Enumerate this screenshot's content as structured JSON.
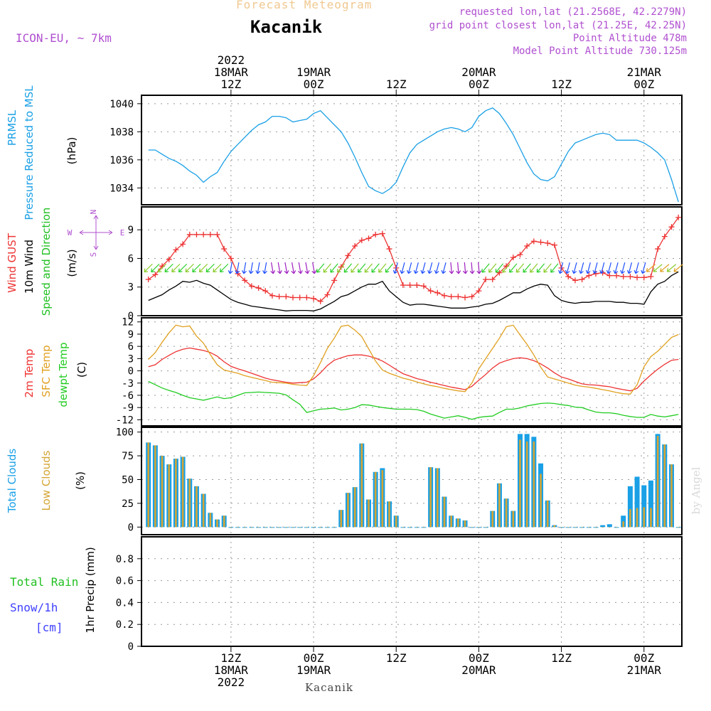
{
  "header": {
    "product": "Forecast Meteogram",
    "location": "Kacanik",
    "model": "ICON-EU, ~ 7km",
    "requested": "requested lon,lat (21.2568E, 42.2279N)",
    "grid_point": "grid point closest lon,lat (21.25E, 42.25N)",
    "point_altitude": "Point Altitude 478m",
    "model_altitude": "Model Point Altitude 730.125m",
    "watermark": "by Angel",
    "footer_location": "Kacanik"
  },
  "colors": {
    "pressure": "#1aa0e6",
    "gust": "#ee3333",
    "wind10m": "#000000",
    "dir_label": "#20c020",
    "t2m": "#ee3333",
    "tsfc": "#e0a020",
    "dewpt": "#22cc22",
    "total_clouds": "#1aa0e6",
    "low_clouds": "#d4a534",
    "rain": "#20c020",
    "snow": "#4040ff",
    "meta": "#b050d0",
    "product": "#f0c890"
  },
  "time_axis": {
    "top_labels": [
      {
        "t": 12,
        "lines": [
          "2022",
          "18MAR",
          "12Z"
        ]
      },
      {
        "t": 24,
        "lines": [
          "19MAR",
          "00Z"
        ]
      },
      {
        "t": 36,
        "lines": [
          "12Z"
        ]
      },
      {
        "t": 48,
        "lines": [
          "20MAR",
          "00Z"
        ]
      },
      {
        "t": 60,
        "lines": [
          "12Z"
        ]
      },
      {
        "t": 72,
        "lines": [
          "21MAR",
          "00Z"
        ]
      }
    ],
    "bottom_labels": [
      {
        "t": 12,
        "lines": [
          "12Z",
          "18MAR",
          "2022"
        ]
      },
      {
        "t": 24,
        "lines": [
          "00Z",
          "19MAR"
        ]
      },
      {
        "t": 36,
        "lines": [
          "12Z"
        ]
      },
      {
        "t": 48,
        "lines": [
          "00Z",
          "20MAR"
        ]
      },
      {
        "t": 60,
        "lines": [
          "12Z"
        ]
      },
      {
        "t": 72,
        "lines": [
          "00Z",
          "21MAR"
        ]
      }
    ]
  },
  "chart_data": [
    {
      "type": "line",
      "panel": "pressure",
      "ylabel_lines": [
        "PRMSL",
        "Pressure Reduced to MSL"
      ],
      "unit": "(hPa)",
      "x_hours": [
        0,
        1,
        2,
        3,
        4,
        5,
        6,
        7,
        8,
        9,
        10,
        11,
        12,
        13,
        14,
        15,
        16,
        17,
        18,
        19,
        20,
        21,
        22,
        23,
        24,
        25,
        26,
        27,
        28,
        29,
        30,
        31,
        32,
        33,
        34,
        35,
        36,
        37,
        38,
        39,
        40,
        41,
        42,
        43,
        44,
        45,
        46,
        47,
        48,
        49,
        50,
        51,
        52,
        53,
        54,
        55,
        56,
        57,
        58,
        59,
        60,
        61,
        62,
        63,
        64,
        65,
        66,
        67,
        68,
        69,
        70,
        71,
        72,
        73,
        74,
        75,
        76,
        77
      ],
      "ylim": [
        1032.8,
        1040.6
      ],
      "yticks": [
        1034,
        1036,
        1038,
        1040
      ],
      "series": [
        {
          "values": [
            1036.7,
            1036.7,
            1036.4,
            1036.1,
            1035.9,
            1035.6,
            1035.2,
            1034.9,
            1034.4,
            1034.8,
            1035.1,
            1035.9,
            1036.6,
            1037.1,
            1037.6,
            1038.1,
            1038.5,
            1038.7,
            1039.1,
            1039.1,
            1039.0,
            1038.7,
            1038.8,
            1038.9,
            1039.3,
            1039.5,
            1039.0,
            1038.5,
            1038.0,
            1037.2,
            1036.2,
            1035.1,
            1034.1,
            1033.8,
            1033.6,
            1033.9,
            1034.4,
            1035.5,
            1036.5,
            1037.1,
            1037.4,
            1037.7,
            1038.0,
            1038.2,
            1038.3,
            1038.2,
            1038.0,
            1038.3,
            1039.1,
            1039.5,
            1039.7,
            1039.3,
            1038.6,
            1037.8,
            1036.8,
            1035.8,
            1035.0,
            1034.6,
            1034.5,
            1034.8,
            1035.7,
            1036.6,
            1037.2,
            1037.4,
            1037.6,
            1037.8,
            1037.9,
            1037.8,
            1037.4,
            1037.4,
            1037.4,
            1037.4,
            1037.2,
            1036.9,
            1036.5,
            1036.0,
            1034.6,
            1033.0
          ]
        }
      ]
    },
    {
      "type": "line",
      "panel": "wind",
      "ylabel_lines": [
        "Wind GUST",
        "10m Wind",
        "Speed and Direction"
      ],
      "unit": "(m/s)",
      "compass": [
        "N",
        "S",
        "W",
        "E"
      ],
      "x_hours": [
        0,
        1,
        2,
        3,
        4,
        5,
        6,
        7,
        8,
        9,
        10,
        11,
        12,
        13,
        14,
        15,
        16,
        17,
        18,
        19,
        20,
        21,
        22,
        23,
        24,
        25,
        26,
        27,
        28,
        29,
        30,
        31,
        32,
        33,
        34,
        35,
        36,
        37,
        38,
        39,
        40,
        41,
        42,
        43,
        44,
        45,
        46,
        47,
        48,
        49,
        50,
        51,
        52,
        53,
        54,
        55,
        56,
        57,
        58,
        59,
        60,
        61,
        62,
        63,
        64,
        65,
        66,
        67,
        68,
        69,
        70,
        71,
        72,
        73,
        74,
        75,
        76,
        77
      ],
      "ylim": [
        0,
        11.4
      ],
      "yticks": [
        0,
        3,
        6,
        9
      ],
      "series": [
        {
          "key": "gust",
          "values": [
            3.8,
            4.3,
            5.2,
            5.9,
            6.9,
            7.5,
            8.5,
            8.5,
            8.5,
            8.5,
            8.5,
            7.0,
            6.0,
            4.4,
            3.7,
            3.1,
            2.9,
            2.6,
            2.1,
            2.0,
            2.0,
            1.9,
            1.9,
            1.9,
            1.8,
            1.5,
            2.2,
            3.7,
            5.1,
            6.3,
            7.3,
            7.9,
            8.1,
            8.5,
            8.6,
            7.0,
            5.0,
            3.2,
            3.2,
            3.2,
            3.1,
            2.6,
            2.4,
            2.1,
            2.0,
            2.0,
            1.9,
            2.0,
            2.6,
            3.8,
            3.8,
            4.5,
            5.2,
            6.1,
            6.4,
            7.3,
            7.8,
            7.7,
            7.6,
            7.4,
            5.0,
            4.1,
            3.7,
            3.8,
            4.2,
            4.4,
            4.5,
            4.2,
            4.2,
            4.1,
            4.1,
            4.0,
            4.0,
            4.1,
            7.0,
            8.3,
            9.3,
            10.3
          ]
        },
        {
          "key": "wind10m",
          "values": [
            1.6,
            1.9,
            2.2,
            2.7,
            3.1,
            3.6,
            3.5,
            3.7,
            3.4,
            3.2,
            2.7,
            2.2,
            1.7,
            1.4,
            1.2,
            1.0,
            0.9,
            0.8,
            0.7,
            0.6,
            0.5,
            0.55,
            0.55,
            0.55,
            0.5,
            0.7,
            1.1,
            1.5,
            2.0,
            2.2,
            2.6,
            3.0,
            3.3,
            3.3,
            3.6,
            2.6,
            2.0,
            1.4,
            1.1,
            1.2,
            1.2,
            1.1,
            1.0,
            0.9,
            0.8,
            0.8,
            0.8,
            0.9,
            1.0,
            1.2,
            1.3,
            1.6,
            2.0,
            2.4,
            2.4,
            2.8,
            3.1,
            3.3,
            3.2,
            2.1,
            1.6,
            1.4,
            1.3,
            1.4,
            1.4,
            1.5,
            1.5,
            1.5,
            1.4,
            1.4,
            1.3,
            1.3,
            1.2,
            2.5,
            3.3,
            3.6,
            4.2,
            4.6
          ]
        }
      ]
    },
    {
      "type": "line",
      "panel": "temperature",
      "ylabel_lines": [
        "2m Temp",
        "SFC Temp",
        "dewpt Temp"
      ],
      "unit": "(C)",
      "x_hours": [
        0,
        1,
        2,
        3,
        4,
        5,
        6,
        7,
        8,
        9,
        10,
        11,
        12,
        13,
        14,
        15,
        16,
        17,
        18,
        19,
        20,
        21,
        22,
        23,
        24,
        25,
        26,
        27,
        28,
        29,
        30,
        31,
        32,
        33,
        34,
        35,
        36,
        37,
        38,
        39,
        40,
        41,
        42,
        43,
        44,
        45,
        46,
        47,
        48,
        49,
        50,
        51,
        52,
        53,
        54,
        55,
        56,
        57,
        58,
        59,
        60,
        61,
        62,
        63,
        64,
        65,
        66,
        67,
        68,
        69,
        70,
        71,
        72,
        73,
        74,
        75,
        76,
        77
      ],
      "ylim": [
        -13.5,
        13
      ],
      "yticks": [
        -12,
        -9,
        -6,
        -3,
        0,
        3,
        6,
        9,
        12
      ],
      "series": [
        {
          "key": "t2m",
          "values": [
            1.0,
            1.5,
            2.8,
            3.8,
            4.7,
            5.3,
            5.6,
            5.3,
            5.0,
            4.5,
            3.6,
            2.2,
            1.1,
            0.5,
            0.0,
            -0.6,
            -1.2,
            -1.8,
            -2.2,
            -2.5,
            -2.8,
            -3.0,
            -2.9,
            -2.8,
            -2.0,
            -0.5,
            1.3,
            2.6,
            3.2,
            3.7,
            3.9,
            3.9,
            3.6,
            3.1,
            2.4,
            1.4,
            0.3,
            -0.7,
            -1.3,
            -1.9,
            -2.3,
            -2.8,
            -3.2,
            -3.6,
            -4.0,
            -4.3,
            -4.6,
            -3.8,
            -2.3,
            -0.9,
            0.7,
            1.9,
            2.5,
            3.0,
            3.2,
            3.0,
            2.5,
            1.7,
            0.7,
            -0.5,
            -1.5,
            -2.0,
            -2.6,
            -3.2,
            -3.4,
            -3.5,
            -3.7,
            -3.9,
            -4.3,
            -4.6,
            -4.9,
            -4.3,
            -2.5,
            -1.0,
            0.4,
            1.6,
            2.6,
            2.8
          ]
        },
        {
          "key": "tsfc",
          "values": [
            2.8,
            4.5,
            7.0,
            9.3,
            11.2,
            10.8,
            11.0,
            8.5,
            6.8,
            4.0,
            1.5,
            0.2,
            -0.2,
            -0.6,
            -1.2,
            -1.6,
            -2.0,
            -2.4,
            -2.8,
            -2.9,
            -3.0,
            -3.3,
            -3.5,
            -3.6,
            -1.2,
            2.0,
            5.5,
            8.0,
            10.9,
            11.2,
            10.0,
            8.4,
            5.4,
            2.4,
            0.2,
            -0.6,
            -1.2,
            -1.8,
            -2.2,
            -2.7,
            -3.2,
            -3.6,
            -3.9,
            -4.3,
            -4.6,
            -4.9,
            -5.1,
            -3.0,
            0.5,
            3.0,
            5.5,
            8.0,
            10.8,
            11.2,
            8.8,
            6.5,
            3.9,
            0.9,
            -1.5,
            -2.0,
            -2.5,
            -3.0,
            -3.5,
            -3.8,
            -4.0,
            -4.3,
            -4.6,
            -4.9,
            -5.3,
            -5.6,
            -5.7,
            -3.4,
            1.0,
            3.5,
            4.8,
            6.5,
            8.2,
            8.9
          ]
        },
        {
          "key": "dewpt",
          "values": [
            -2.6,
            -3.4,
            -4.2,
            -4.8,
            -5.3,
            -6.0,
            -6.6,
            -6.9,
            -7.2,
            -6.8,
            -6.4,
            -6.8,
            -6.6,
            -6.0,
            -5.4,
            -5.3,
            -5.2,
            -5.3,
            -5.4,
            -5.5,
            -5.9,
            -7.1,
            -8.2,
            -10.2,
            -9.8,
            -9.4,
            -9.3,
            -9.1,
            -9.6,
            -9.4,
            -9.0,
            -8.3,
            -8.4,
            -8.7,
            -9.0,
            -9.2,
            -9.4,
            -9.4,
            -9.4,
            -9.5,
            -9.9,
            -10.6,
            -11.1,
            -11.6,
            -11.3,
            -11.0,
            -11.4,
            -11.9,
            -11.4,
            -11.2,
            -11.1,
            -10.2,
            -9.4,
            -9.4,
            -9.1,
            -8.6,
            -8.3,
            -8.0,
            -7.9,
            -8.0,
            -8.3,
            -8.5,
            -8.9,
            -9.0,
            -9.6,
            -10.1,
            -10.3,
            -10.3,
            -10.5,
            -10.9,
            -11.2,
            -11.4,
            -11.4,
            -10.7,
            -11.1,
            -11.3,
            -11.0,
            -10.7
          ]
        }
      ]
    },
    {
      "type": "bar",
      "panel": "clouds",
      "ylabel_lines": [
        "Total Clouds",
        "Low Clouds"
      ],
      "unit": "(%)",
      "x_hours": [
        0,
        1,
        2,
        3,
        4,
        5,
        6,
        7,
        8,
        9,
        10,
        11,
        12,
        13,
        14,
        15,
        16,
        17,
        18,
        19,
        20,
        21,
        22,
        23,
        24,
        25,
        26,
        27,
        28,
        29,
        30,
        31,
        32,
        33,
        34,
        35,
        36,
        37,
        38,
        39,
        40,
        41,
        42,
        43,
        44,
        45,
        46,
        47,
        48,
        49,
        50,
        51,
        52,
        53,
        54,
        55,
        56,
        57,
        58,
        59,
        60,
        61,
        62,
        63,
        64,
        65,
        66,
        67,
        68,
        69,
        70,
        71,
        72,
        73,
        74,
        75,
        76,
        77
      ],
      "ylim": [
        -8,
        105
      ],
      "yticks": [
        0,
        25,
        50,
        75,
        100
      ],
      "series": [
        {
          "key": "total",
          "values": [
            89,
            86,
            75,
            66,
            72,
            74,
            51,
            43,
            35,
            15,
            8,
            12,
            0,
            0,
            0,
            0,
            0,
            0,
            0,
            0,
            0,
            0,
            0,
            0,
            0,
            0,
            0,
            0,
            18,
            36,
            42,
            88,
            29,
            58,
            62,
            27,
            12,
            0,
            0,
            0,
            0,
            63,
            62,
            32,
            12,
            9,
            7,
            0,
            0,
            0,
            17,
            46,
            30,
            17,
            98,
            98,
            95,
            67,
            28,
            2,
            0,
            0,
            0,
            0,
            0,
            0,
            2,
            3,
            0,
            12,
            43,
            53,
            44,
            49,
            98,
            87,
            66,
            0
          ]
        },
        {
          "key": "low",
          "values": [
            89,
            86,
            75,
            66,
            72,
            74,
            51,
            43,
            35,
            15,
            8,
            12,
            0,
            0,
            0,
            0,
            0,
            0,
            0,
            0,
            0,
            0,
            0,
            0,
            0,
            0,
            0,
            0,
            18,
            36,
            42,
            88,
            29,
            58,
            60,
            27,
            12,
            0,
            0,
            0,
            0,
            63,
            62,
            32,
            12,
            9,
            7,
            0,
            0,
            0,
            17,
            46,
            30,
            17,
            92,
            90,
            90,
            56,
            28,
            2,
            0,
            0,
            0,
            0,
            0,
            0,
            0,
            0,
            0,
            6,
            19,
            20,
            21,
            20,
            96,
            87,
            66,
            0
          ]
        }
      ]
    },
    {
      "type": "bar",
      "panel": "precip",
      "ylabel_lines": [
        "Total Rain",
        "Snow/1h",
        "[cm]"
      ],
      "unit": "1hr Precip (mm)",
      "ylim": [
        0,
        1.0
      ],
      "yticks": [
        0,
        0.2,
        0.4,
        0.6,
        0.8
      ],
      "ytick_labels": [
        "0",
        "0.2",
        "0.4",
        "0.6",
        "0.8"
      ],
      "series": []
    }
  ]
}
